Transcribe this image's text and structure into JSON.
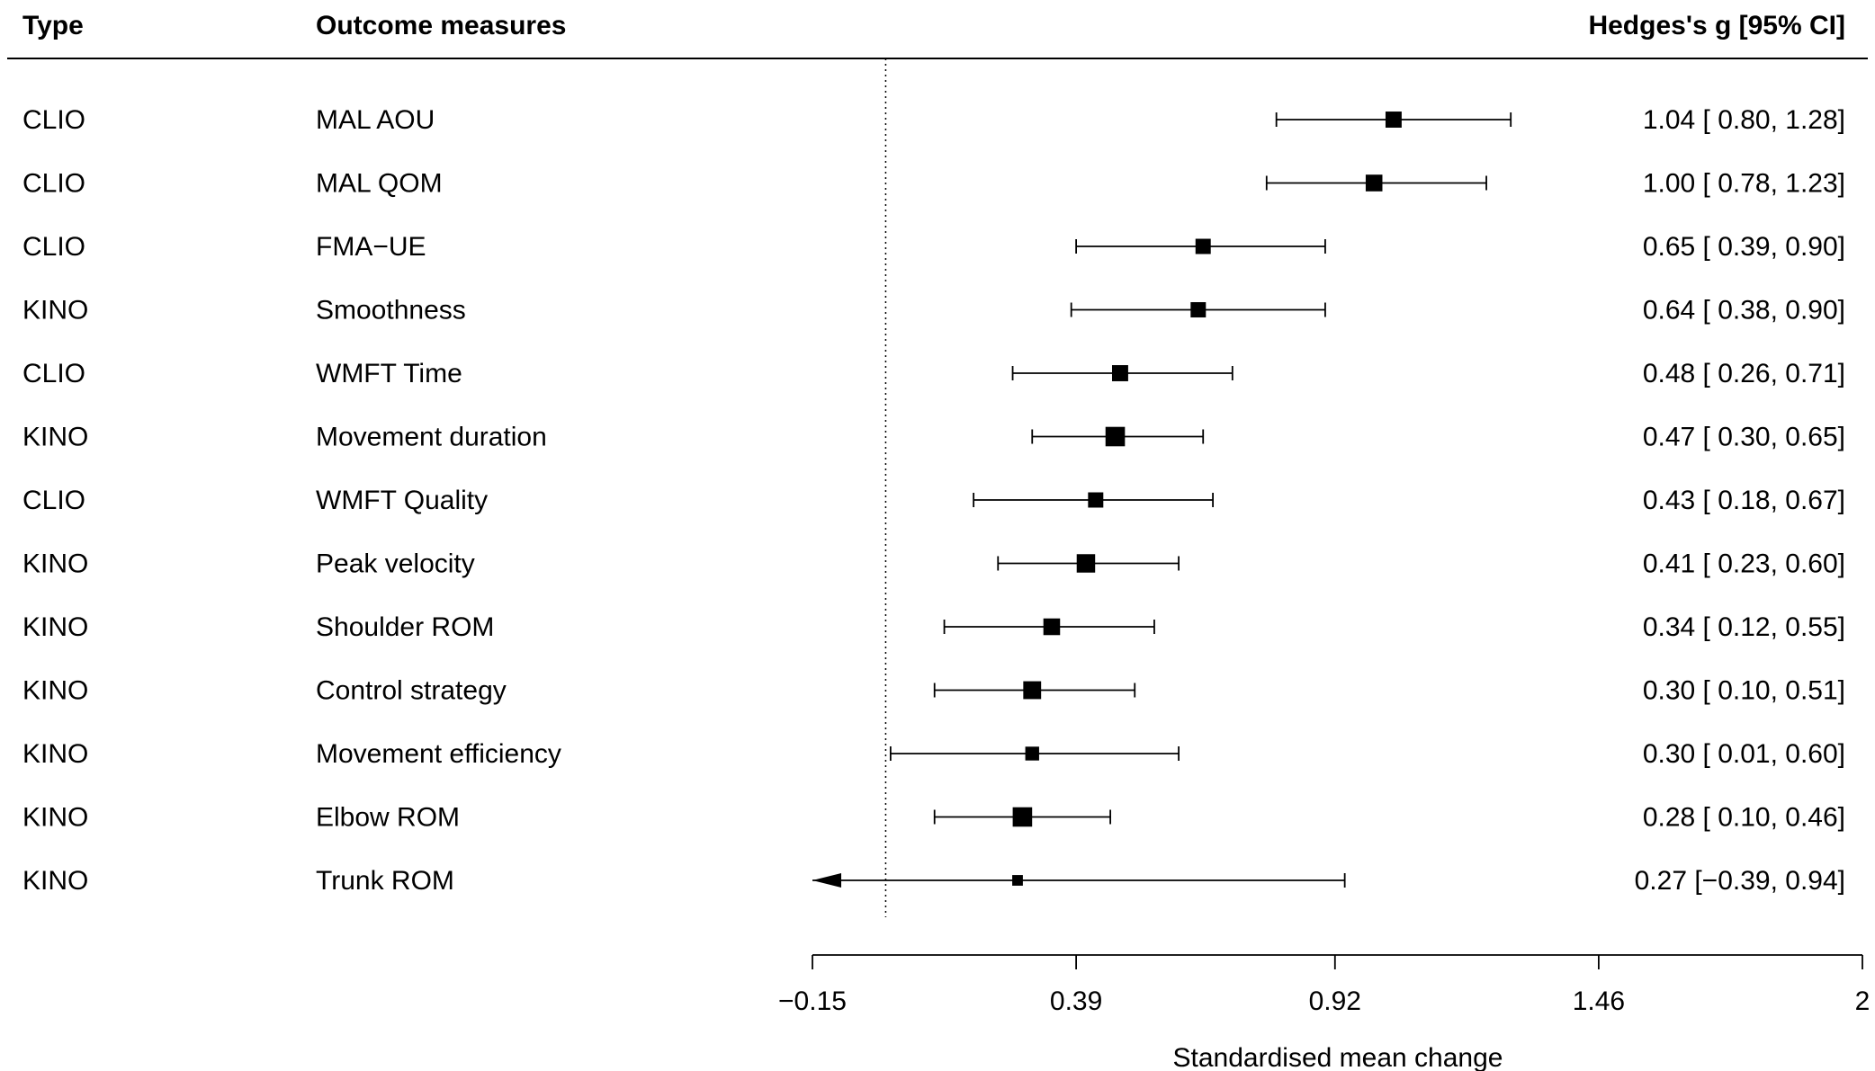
{
  "headers": {
    "type": "Type",
    "outcome": "Outcome measures",
    "estimate": "Hedges's g [95% CI]"
  },
  "chart_data": {
    "type": "forest",
    "xlabel": "Standardised mean change",
    "xlim": [
      -0.15,
      2
    ],
    "xticks": [
      -0.15,
      0.39,
      0.92,
      1.46,
      2
    ],
    "xtick_labels": [
      "−0.15",
      "0.39",
      "0.92",
      "1.46",
      "2"
    ],
    "reference_line": 0,
    "rows": [
      {
        "type": "CLIO",
        "outcome": "MAL AOU",
        "estimate": 1.04,
        "lower": 0.8,
        "upper": 1.28,
        "label": "1.04 [ 0.80, 1.28]",
        "weight": 0.62
      },
      {
        "type": "CLIO",
        "outcome": "MAL QOM",
        "estimate": 1.0,
        "lower": 0.78,
        "upper": 1.23,
        "label": "1.00 [ 0.78, 1.23]",
        "weight": 0.66
      },
      {
        "type": "CLIO",
        "outcome": "FMA−UE",
        "estimate": 0.65,
        "lower": 0.39,
        "upper": 0.9,
        "label": "0.65 [ 0.39, 0.90]",
        "weight": 0.56
      },
      {
        "type": "KINO",
        "outcome": "Smoothness",
        "estimate": 0.64,
        "lower": 0.38,
        "upper": 0.9,
        "label": "0.64 [ 0.38, 0.90]",
        "weight": 0.56
      },
      {
        "type": "CLIO",
        "outcome": "WMFT Time",
        "estimate": 0.48,
        "lower": 0.26,
        "upper": 0.71,
        "label": "0.48 [ 0.26, 0.71]",
        "weight": 0.62
      },
      {
        "type": "KINO",
        "outcome": "Movement duration",
        "estimate": 0.47,
        "lower": 0.3,
        "upper": 0.65,
        "label": "0.47 [ 0.30, 0.65]",
        "weight": 0.85
      },
      {
        "type": "CLIO",
        "outcome": "WMFT Quality",
        "estimate": 0.43,
        "lower": 0.18,
        "upper": 0.67,
        "label": "0.43 [ 0.18, 0.67]",
        "weight": 0.56
      },
      {
        "type": "KINO",
        "outcome": "Peak velocity",
        "estimate": 0.41,
        "lower": 0.23,
        "upper": 0.6,
        "label": "0.41 [ 0.23, 0.60]",
        "weight": 0.78
      },
      {
        "type": "KINO",
        "outcome": "Shoulder ROM",
        "estimate": 0.34,
        "lower": 0.12,
        "upper": 0.55,
        "label": "0.34 [ 0.12, 0.55]",
        "weight": 0.66
      },
      {
        "type": "KINO",
        "outcome": "Control strategy",
        "estimate": 0.3,
        "lower": 0.1,
        "upper": 0.51,
        "label": "0.30 [ 0.10, 0.51]",
        "weight": 0.74
      },
      {
        "type": "KINO",
        "outcome": "Movement efficiency",
        "estimate": 0.3,
        "lower": 0.01,
        "upper": 0.6,
        "label": "0.30 [ 0.01, 0.60]",
        "weight": 0.46
      },
      {
        "type": "KINO",
        "outcome": "Elbow ROM",
        "estimate": 0.28,
        "lower": 0.1,
        "upper": 0.46,
        "label": "0.28 [ 0.10, 0.46]",
        "weight": 0.85
      },
      {
        "type": "KINO",
        "outcome": "Trunk ROM",
        "estimate": 0.27,
        "lower": -0.39,
        "upper": 0.94,
        "label": "0.27 [−0.39, 0.94]",
        "weight": 0.24
      }
    ]
  }
}
